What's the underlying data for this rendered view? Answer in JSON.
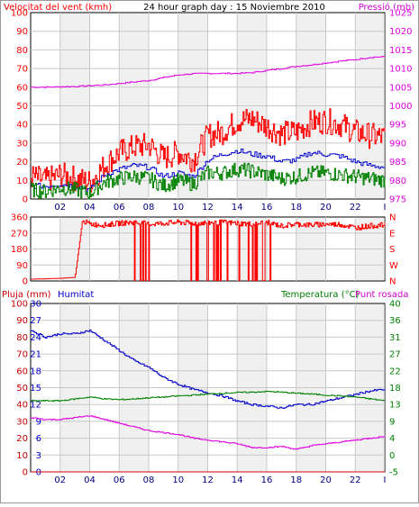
{
  "header": {
    "wind_label": "Velocitat del vent (kmh)",
    "title": "24 hour graph day : 15 Noviembre 2010",
    "pressure_label": "Pressió (mb)"
  },
  "bottom_labels": {
    "rain_label": "Pluja (mm)",
    "humidity_label": "Humitat",
    "temp_label": "Temperatura (°C)",
    "dew_label": "Punt rosada"
  },
  "colors": {
    "red": "#ff0000",
    "green": "#008000",
    "blue": "#0000cc",
    "magenta": "#e000e0",
    "darkred": "#cc0000",
    "grid": "#c8c8c8",
    "weekband": "#e4e4e4"
  },
  "chart_data": [
    {
      "type": "line",
      "name": "wind-pressure",
      "title": "24 hour graph day : 15 Noviembre 2010",
      "x_ticks": [
        "02",
        "04",
        "06",
        "08",
        "10",
        "12",
        "14",
        "16",
        "18",
        "20",
        "22",
        "I"
      ],
      "y_left_ticks": [
        "0",
        "10",
        "20",
        "30",
        "40",
        "50",
        "60",
        "70",
        "80",
        "90",
        "100"
      ],
      "y_left_label": "Velocitat del vent (kmh)",
      "ylim_left": [
        0,
        100
      ],
      "y_right_ticks": [
        "975",
        "980",
        "985",
        "990",
        "995",
        "1000",
        "1005",
        "1010",
        "1015",
        "1020",
        "1025"
      ],
      "y_right_label": "Pressió (mb)",
      "ylim_right": [
        975,
        1025
      ],
      "grid": true,
      "series": [
        {
          "axis": "right",
          "color_key": "magenta",
          "x": [
            0,
            1,
            2,
            3,
            4,
            5,
            6,
            7,
            8,
            9,
            10,
            11,
            12,
            13,
            14,
            15,
            16,
            17,
            18,
            19,
            20,
            21,
            22,
            23,
            24
          ],
          "values": [
            1005.0,
            1005.0,
            1005.1,
            1005.2,
            1005.4,
            1005.6,
            1006.0,
            1006.4,
            1006.8,
            1007.6,
            1008.3,
            1008.6,
            1008.7,
            1008.7,
            1008.7,
            1008.9,
            1009.5,
            1010.0,
            1010.6,
            1011.0,
            1011.5,
            1012.0,
            1012.4,
            1013.0,
            1013.2
          ]
        },
        {
          "axis": "left",
          "color_key": "red",
          "x": [
            0,
            1,
            2,
            3,
            4,
            5,
            6,
            7,
            8,
            9,
            10,
            11,
            12,
            13,
            14,
            15,
            16,
            17,
            18,
            19,
            20,
            21,
            22,
            23,
            24
          ],
          "values": [
            12,
            10,
            13,
            11,
            9,
            18,
            25,
            28,
            29,
            22,
            25,
            21,
            34,
            36,
            42,
            43,
            39,
            35,
            36,
            41,
            42,
            40,
            36,
            34,
            33
          ]
        },
        {
          "axis": "left",
          "color_key": "blue",
          "x": [
            0,
            1,
            2,
            3,
            4,
            5,
            6,
            7,
            8,
            9,
            10,
            11,
            12,
            13,
            14,
            15,
            16,
            17,
            18,
            19,
            20,
            21,
            22,
            23,
            24
          ],
          "values": [
            7,
            7,
            8,
            7,
            5,
            13,
            16,
            18,
            17,
            12,
            14,
            12,
            21,
            24,
            26,
            24,
            23,
            20,
            21,
            25,
            24,
            23,
            20,
            18,
            17
          ]
        },
        {
          "axis": "left",
          "color_key": "green",
          "x": [
            0,
            1,
            2,
            3,
            4,
            5,
            6,
            7,
            8,
            9,
            10,
            11,
            12,
            13,
            14,
            15,
            16,
            17,
            18,
            19,
            20,
            21,
            22,
            23,
            24
          ],
          "values": [
            5,
            4,
            6,
            5,
            3,
            9,
            11,
            12,
            11,
            7,
            10,
            8,
            14,
            14,
            16,
            15,
            13,
            11,
            12,
            14,
            14,
            13,
            12,
            11,
            10
          ]
        }
      ]
    },
    {
      "type": "line",
      "name": "wind-direction",
      "x_ticks": [],
      "y_left_ticks": [
        "0",
        "90",
        "180",
        "270",
        "360"
      ],
      "ylim_left": [
        0,
        360
      ],
      "y_right_ticks": [
        "N",
        "W",
        "S",
        "E",
        "N"
      ],
      "grid": true,
      "series": [
        {
          "color_key": "red",
          "x": [
            0,
            1,
            2,
            3,
            3.5,
            4,
            5,
            6,
            7,
            8,
            9,
            10,
            11,
            12,
            13,
            14,
            15,
            16,
            17,
            18,
            19,
            20,
            21,
            22,
            23,
            24
          ],
          "values": [
            10,
            12,
            15,
            20,
            340,
            320,
            315,
            325,
            330,
            320,
            325,
            330,
            325,
            328,
            330,
            325,
            320,
            330,
            310,
            320,
            315,
            320,
            318,
            300,
            310,
            315
          ]
        }
      ]
    },
    {
      "type": "line",
      "name": "rain-humidity-temp",
      "x_ticks": [
        "02",
        "04",
        "06",
        "08",
        "10",
        "12",
        "14",
        "16",
        "18",
        "20",
        "22",
        "I"
      ],
      "y_left_ticks_rain": [
        "0",
        "10",
        "20",
        "30",
        "40",
        "50",
        "60",
        "70",
        "80",
        "90",
        "100"
      ],
      "y_left_ticks_hum": [
        "0",
        "3",
        "6",
        "9",
        "12",
        "15",
        "18",
        "21",
        "24",
        "27",
        "30"
      ],
      "y_left_label": "Pluja (mm)",
      "y_left_label2": "Humitat",
      "ylim_left": [
        0,
        100
      ],
      "y_right_ticks": [
        "-5",
        "0",
        "4",
        "9",
        "13",
        "18",
        "22",
        "27",
        "31",
        "36",
        "40"
      ],
      "y_right_label": "Temperatura (°C)",
      "y_right_label2": "Punt rosada",
      "ylim_right": [
        -5,
        40
      ],
      "grid": true,
      "series": [
        {
          "axis": "left",
          "color_key": "blue",
          "x": [
            0,
            1,
            2,
            3,
            4,
            5,
            6,
            7,
            8,
            9,
            10,
            11,
            12,
            13,
            14,
            15,
            16,
            17,
            18,
            19,
            20,
            21,
            22,
            23,
            24
          ],
          "values": [
            84,
            80,
            82,
            82,
            84,
            78,
            72,
            66,
            62,
            56,
            52,
            49,
            47,
            45,
            42,
            40,
            39,
            38,
            40,
            40,
            42,
            44,
            46,
            48,
            49
          ]
        },
        {
          "axis": "right",
          "color_key": "green",
          "x": [
            0,
            1,
            2,
            3,
            4,
            5,
            6,
            7,
            8,
            9,
            10,
            11,
            12,
            13,
            14,
            15,
            16,
            17,
            18,
            19,
            20,
            21,
            22,
            23,
            24
          ],
          "values": [
            14,
            14,
            14,
            14.5,
            15,
            14.5,
            14.3,
            14.5,
            14.8,
            15,
            15.3,
            15.5,
            15.8,
            16,
            16.2,
            16.3,
            16.5,
            16.3,
            16,
            15.8,
            15.5,
            15.3,
            15,
            14.5,
            14
          ]
        },
        {
          "axis": "right",
          "color_key": "magenta",
          "x": [
            0,
            1,
            2,
            3,
            4,
            5,
            6,
            7,
            8,
            9,
            10,
            11,
            12,
            13,
            14,
            15,
            16,
            17,
            18,
            19,
            20,
            21,
            22,
            23,
            24
          ],
          "values": [
            9.5,
            9,
            9,
            9.5,
            10,
            9,
            8,
            7,
            6,
            5.5,
            5,
            4,
            3.5,
            3,
            2.5,
            1.5,
            1.5,
            1.8,
            1,
            2,
            2.5,
            3,
            3.5,
            4,
            4.5
          ]
        },
        {
          "axis": "left",
          "color_key": "darkred",
          "x": [
            0,
            24
          ],
          "values": [
            0,
            0
          ]
        }
      ]
    }
  ]
}
